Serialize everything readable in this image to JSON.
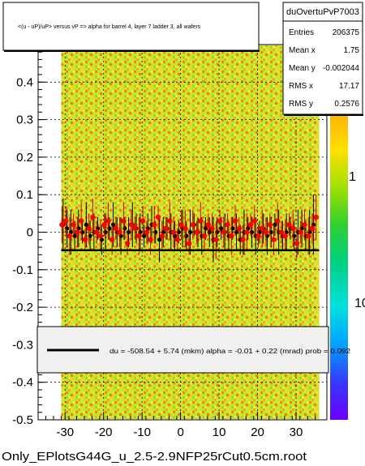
{
  "chart_data": {
    "type": "scatter",
    "title": "<(u - uP)/uP> versus   vP => alpha for barrel 4, layer 7 ladder 3, all wafers",
    "footer": "Only_EPlotsG44G_u_2.5-2.9NFP25rCut0.5cm.root",
    "xlim": [
      -37,
      38
    ],
    "ylim": [
      -0.5,
      0.5
    ],
    "x_ticks": [
      -30,
      -20,
      -10,
      0,
      10,
      20,
      30
    ],
    "y_ticks": [
      -0.5,
      -0.4,
      -0.3,
      -0.2,
      -0.1,
      0,
      0.1,
      0.2,
      0.3,
      0.4
    ],
    "y_tick_labels": [
      "-0.5",
      "-0.4",
      "-0.3",
      "-0.2",
      "-0.1",
      "0",
      "0.1",
      "0.2",
      "0.3",
      "0.4"
    ],
    "x_tick_labels": [
      "-30",
      "-20",
      "-10",
      "0",
      "10",
      "20",
      "30"
    ],
    "grid": true,
    "colorbar": {
      "scale": "log",
      "tick_labels": [
        "1",
        "10"
      ],
      "colors": [
        "#6a00ff",
        "#3838ff",
        "#00a0ff",
        "#00e0e0",
        "#00d080",
        "#30d030",
        "#a0e000",
        "#ffe000",
        "#ffb000",
        "#ff6000",
        "#ff0000"
      ]
    },
    "stats": {
      "name": "duOvertuPvP7003",
      "rows": [
        {
          "label": "Entries",
          "value": "206375"
        },
        {
          "label": "Mean x",
          "value": "1.75"
        },
        {
          "label": "Mean y",
          "value": "-0.002044"
        },
        {
          "label": "RMS x",
          "value": "17.17"
        },
        {
          "label": "RMS y",
          "value": "0.2576"
        }
      ]
    },
    "fit_legend": "du = -508.54 +   5.74 (mkm) alpha =   -0.01 +   0.22 (mrad) prob = 0.092",
    "fit_line": {
      "x": [
        -31,
        36
      ],
      "y": [
        -0.048,
        -0.048
      ]
    },
    "band_x": [
      -31,
      36
    ],
    "profile_black": {
      "x": [
        -30.5,
        -29.5,
        -28.5,
        -27.5,
        -26.5,
        -25.5,
        -24.5,
        -23.5,
        -22.5,
        -21.5,
        -20.5,
        -19.5,
        -18.5,
        -17.5,
        -16.5,
        -15.5,
        -14.5,
        -13.5,
        -12.5,
        -11.5,
        -10.5,
        -9.5,
        -8.5,
        -7.5,
        -6.5,
        -5.5,
        -4.5,
        -3.5,
        -2.5,
        -1.5,
        -0.5,
        0.5,
        1.5,
        2.5,
        3.5,
        4.5,
        5.5,
        6.5,
        7.5,
        8.5,
        9.5,
        10.5,
        11.5,
        12.5,
        13.5,
        14.5,
        15.5,
        16.5,
        17.5,
        18.5,
        19.5,
        20.5,
        21.5,
        22.5,
        23.5,
        24.5,
        25.5,
        26.5,
        27.5,
        28.5,
        29.5,
        30.5,
        31.5,
        32.5,
        33.5,
        34.5
      ],
      "y": [
        0.02,
        0.01,
        0.0,
        -0.01,
        0.01,
        0.0,
        0.02,
        -0.01,
        0.0,
        0.01,
        -0.02,
        0.0,
        0.01,
        0.02,
        0.0,
        -0.01,
        0.01,
        0.0,
        0.02,
        0.01,
        0.0,
        -0.01,
        0.01,
        0.02,
        0.0,
        -0.02,
        0.0,
        0.01,
        0.0,
        -0.01,
        0.0,
        0.01,
        -0.01,
        0.0,
        0.02,
        0.0,
        -0.01,
        0.01,
        0.0,
        -0.02,
        0.0,
        0.01,
        0.0,
        -0.01,
        0.01,
        0.0,
        -0.02,
        0.0,
        0.01,
        0.0,
        -0.01,
        0.0,
        0.01,
        -0.01,
        0.0,
        0.02,
        0.0,
        -0.01,
        0.0,
        0.01,
        -0.01,
        0.0,
        0.01,
        -0.01,
        0.0,
        0.02
      ],
      "err": [
        0.07,
        0.05,
        0.06,
        0.04,
        0.05,
        0.03,
        0.06,
        0.04,
        0.05,
        0.03,
        0.04,
        0.05,
        0.03,
        0.06,
        0.04,
        0.05,
        0.03,
        0.04,
        0.06,
        0.04,
        0.05,
        0.03,
        0.04,
        0.05,
        0.03,
        0.06,
        0.04,
        0.03,
        0.05,
        0.04,
        0.03,
        0.05,
        0.04,
        0.06,
        0.03,
        0.04,
        0.05,
        0.03,
        0.04,
        0.06,
        0.04,
        0.03,
        0.05,
        0.04,
        0.03,
        0.05,
        0.04,
        0.06,
        0.03,
        0.04,
        0.05,
        0.03,
        0.04,
        0.05,
        0.04,
        0.03,
        0.06,
        0.04,
        0.05,
        0.03,
        0.04,
        0.06,
        0.05,
        0.04,
        0.06,
        0.08
      ]
    },
    "profile_red": {
      "x": [
        -30.8,
        -29.8,
        -28.8,
        -27.8,
        -26.8,
        -25.8,
        -24.8,
        -23.8,
        -22.8,
        -21.8,
        -20.8,
        -19.8,
        -18.8,
        -17.8,
        -16.8,
        -15.8,
        -14.8,
        -13.8,
        -12.8,
        -11.8,
        -10.8,
        -9.8,
        -8.8,
        -7.8,
        -6.8,
        -5.8,
        -4.8,
        -3.8,
        -2.8,
        -1.8,
        -0.8,
        0.2,
        1.2,
        2.2,
        3.2,
        4.2,
        5.2,
        6.2,
        7.2,
        8.2,
        9.2,
        10.2,
        11.2,
        12.2,
        13.2,
        14.2,
        15.2,
        16.2,
        17.2,
        18.2,
        19.2,
        20.2,
        21.2,
        22.2,
        23.2,
        24.2,
        25.2,
        26.2,
        27.2,
        28.2,
        29.2,
        30.2,
        31.2,
        32.2,
        33.2,
        34.2,
        35.2
      ],
      "y": [
        0.02,
        0.03,
        -0.01,
        0.02,
        0.0,
        0.03,
        -0.02,
        0.01,
        0.04,
        0.0,
        -0.01,
        0.02,
        0.03,
        -0.02,
        0.01,
        0.0,
        0.03,
        -0.03,
        0.02,
        0.01,
        -0.01,
        0.03,
        0.0,
        -0.02,
        0.02,
        0.04,
        -0.01,
        0.01,
        0.03,
        0.0,
        -0.02,
        0.02,
        0.01,
        -0.03,
        0.02,
        0.0,
        0.03,
        -0.01,
        0.02,
        0.01,
        -0.02,
        0.03,
        0.0,
        0.02,
        -0.01,
        0.03,
        0.01,
        -0.02,
        0.0,
        0.02,
        0.03,
        -0.01,
        0.01,
        0.0,
        0.02,
        -0.02,
        0.03,
        0.0,
        -0.01,
        0.02,
        0.01,
        -0.03,
        0.0,
        0.02,
        -0.01,
        0.01,
        0.04
      ],
      "err": [
        0.05,
        0.04,
        0.05,
        0.03,
        0.04,
        0.05,
        0.03,
        0.04,
        0.05,
        0.03,
        0.04,
        0.03,
        0.05,
        0.04,
        0.03,
        0.04,
        0.05,
        0.03,
        0.04,
        0.03,
        0.05,
        0.04,
        0.03,
        0.04,
        0.05,
        0.03,
        0.04,
        0.03,
        0.05,
        0.04,
        0.03,
        0.04,
        0.05,
        0.03,
        0.04,
        0.03,
        0.05,
        0.04,
        0.03,
        0.04,
        0.05,
        0.03,
        0.04,
        0.03,
        0.05,
        0.04,
        0.03,
        0.04,
        0.05,
        0.03,
        0.04,
        0.03,
        0.05,
        0.04,
        0.03,
        0.04,
        0.05,
        0.03,
        0.04,
        0.03,
        0.05,
        0.04,
        0.03,
        0.04,
        0.05,
        0.04,
        0.06
      ]
    }
  }
}
